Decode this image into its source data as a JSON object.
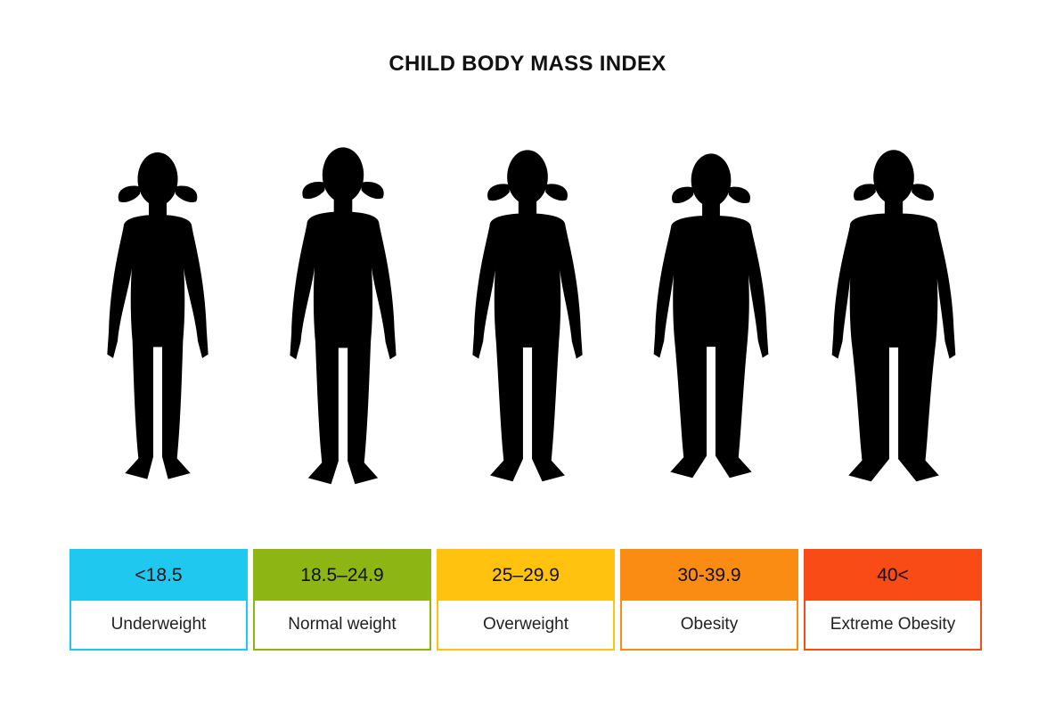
{
  "title": "CHILD BODY MASS INDEX",
  "categories": [
    {
      "range": "<18.5",
      "label": "Underweight",
      "color": "#1ec8ef",
      "width": 0.0
    },
    {
      "range": "18.5–24.9",
      "label": "Normal weight",
      "color": "#8db514",
      "width": 0.1
    },
    {
      "range": "25–29.9",
      "label": "Overweight",
      "color": "#ffc20e",
      "width": 0.35
    },
    {
      "range": "30-39.9",
      "label": "Obesity",
      "color": "#fb8c13",
      "width": 0.7
    },
    {
      "range": "40<",
      "label": "Extreme Obesity",
      "color": "#f94b16",
      "width": 1.0
    }
  ],
  "icons": {
    "figure": "child-silhouette-icon"
  }
}
